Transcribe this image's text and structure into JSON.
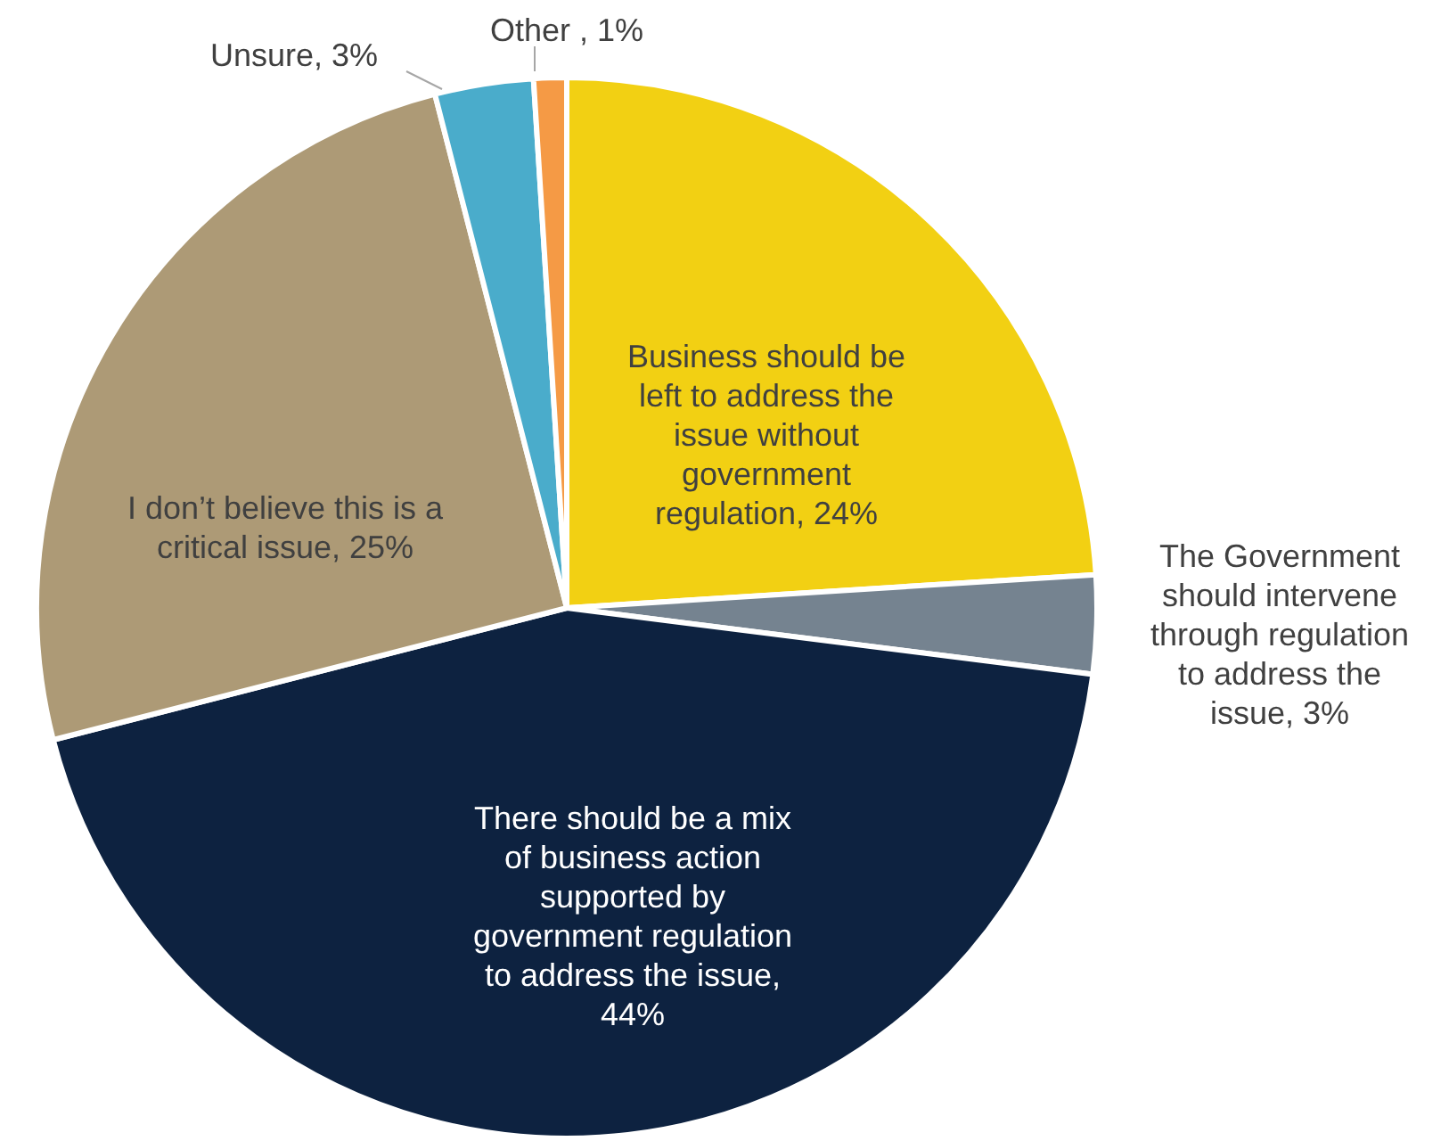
{
  "chart_data": {
    "type": "pie",
    "categories": [
      "Business should be left to address the issue without government regulation, 24%",
      "The Government should intervene through regulation to address the issue, 3%",
      "There should be a mix of business action supported by government regulation to address the issue, 44%",
      "I don’t believe this is a critical issue, 25%",
      "Unsure, 3%",
      "Other , 1%"
    ],
    "values": [
      24,
      3,
      44,
      25,
      3,
      1
    ],
    "colors": [
      "#f2d013",
      "#758390",
      "#0d2240",
      "#ad9a76",
      "#4aaccb",
      "#f59a45"
    ]
  }
}
